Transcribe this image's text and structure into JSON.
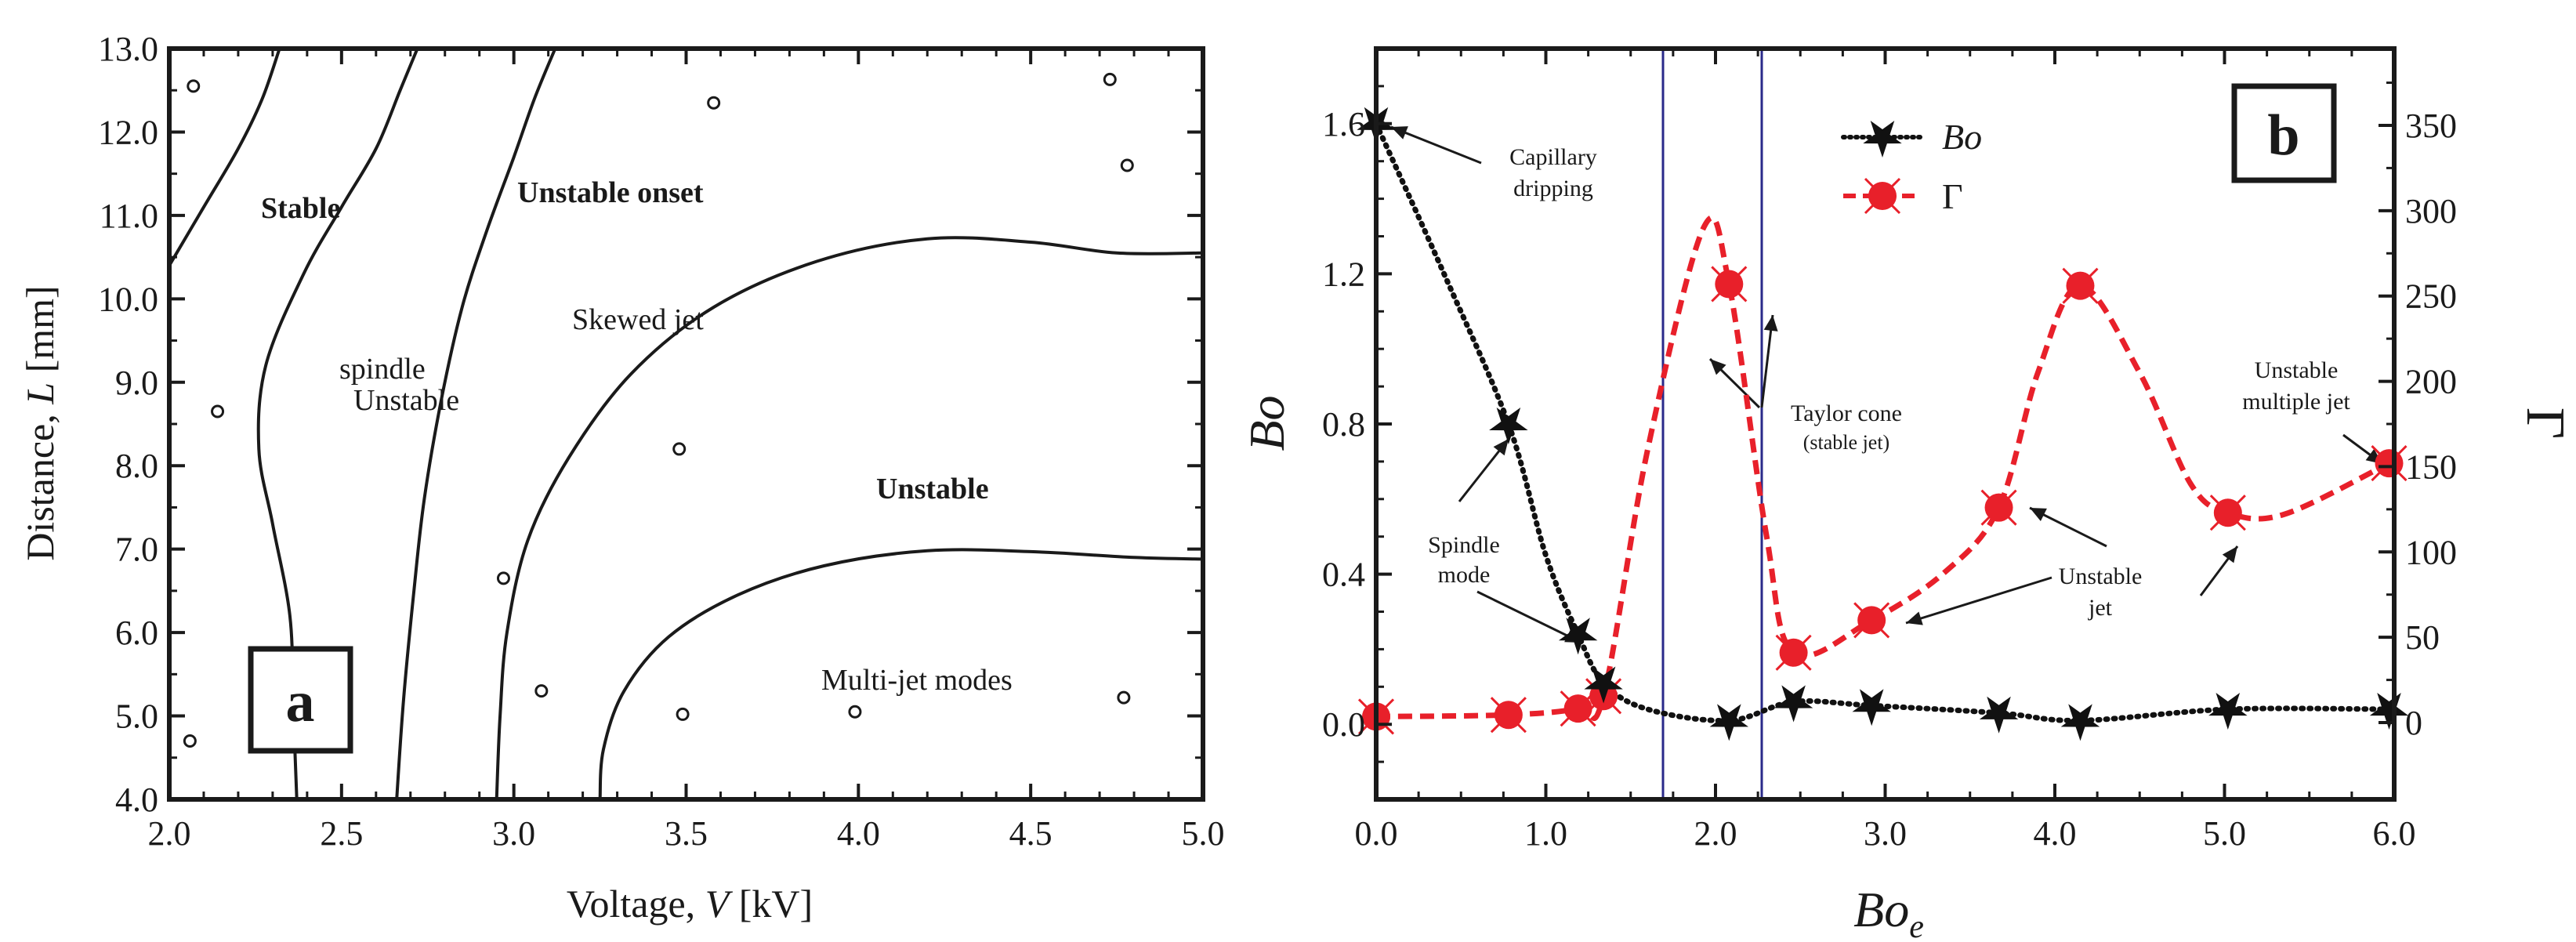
{
  "chart_data": [
    {
      "type": "scatter",
      "panel_label": "a",
      "xlabel": "Voltage, ",
      "xlabel_var": "V",
      "xlabel_unit": " [kV]",
      "ylabel": "Distance, ",
      "ylabel_var": "L",
      "ylabel_unit": " [mm]",
      "xlim": [
        2.0,
        5.0
      ],
      "ylim": [
        4.0,
        13.0
      ],
      "xticks": [
        "2.0",
        "2.5",
        "3.0",
        "3.5",
        "4.0",
        "4.5",
        "5.0"
      ],
      "yticks": [
        "4.0",
        "5.0",
        "6.0",
        "7.0",
        "8.0",
        "9.0",
        "10.0",
        "11.0",
        "12.0",
        "13.0"
      ],
      "points": [
        {
          "x": 2.07,
          "y": 12.55
        },
        {
          "x": 4.73,
          "y": 12.63
        },
        {
          "x": 3.58,
          "y": 12.35
        },
        {
          "x": 4.78,
          "y": 11.6
        },
        {
          "x": 2.14,
          "y": 8.65
        },
        {
          "x": 3.48,
          "y": 8.2
        },
        {
          "x": 2.97,
          "y": 6.65
        },
        {
          "x": 3.08,
          "y": 5.3
        },
        {
          "x": 3.49,
          "y": 5.02
        },
        {
          "x": 3.99,
          "y": 5.05
        },
        {
          "x": 4.77,
          "y": 5.22
        },
        {
          "x": 2.06,
          "y": 4.7
        }
      ],
      "boundaries": [
        {
          "name": "stable-boundary",
          "points": [
            [
              2.0,
              10.4
            ],
            [
              2.1,
              11.1
            ],
            [
              2.2,
              11.8
            ],
            [
              2.27,
              12.4
            ],
            [
              2.32,
              13.0
            ]
          ]
        },
        {
          "name": "spindle-boundary",
          "points": [
            [
              2.37,
              4.0
            ],
            [
              2.36,
              5.1
            ],
            [
              2.35,
              6.2
            ],
            [
              2.3,
              7.3
            ],
            [
              2.26,
              8.2
            ],
            [
              2.28,
              9.2
            ],
            [
              2.39,
              10.3
            ],
            [
              2.5,
              11.1
            ],
            [
              2.6,
              11.8
            ],
            [
              2.67,
              12.5
            ],
            [
              2.72,
              13.0
            ]
          ]
        },
        {
          "name": "onset-boundary",
          "points": [
            [
              2.66,
              4.0
            ],
            [
              2.68,
              5.2
            ],
            [
              2.71,
              6.5
            ],
            [
              2.74,
              7.6
            ],
            [
              2.79,
              8.8
            ],
            [
              2.85,
              9.9
            ],
            [
              2.92,
              10.8
            ],
            [
              3.0,
              11.7
            ],
            [
              3.06,
              12.4
            ],
            [
              3.12,
              13.0
            ]
          ]
        },
        {
          "name": "skewed-boundary",
          "points": [
            [
              2.95,
              4.0
            ],
            [
              2.96,
              5.0
            ],
            [
              2.98,
              6.0
            ],
            [
              3.04,
              7.1
            ],
            [
              3.16,
              8.1
            ],
            [
              3.34,
              9.1
            ],
            [
              3.58,
              9.9
            ],
            [
              3.88,
              10.45
            ],
            [
              4.2,
              10.72
            ],
            [
              4.5,
              10.68
            ],
            [
              4.75,
              10.55
            ],
            [
              5.0,
              10.55
            ]
          ]
        },
        {
          "name": "unstable-boundary",
          "points": [
            [
              3.25,
              4.0
            ],
            [
              3.26,
              4.6
            ],
            [
              3.32,
              5.3
            ],
            [
              3.45,
              5.95
            ],
            [
              3.65,
              6.45
            ],
            [
              3.9,
              6.8
            ],
            [
              4.2,
              6.98
            ],
            [
              4.5,
              6.97
            ],
            [
              4.8,
              6.9
            ],
            [
              5.0,
              6.88
            ]
          ]
        }
      ],
      "region_labels": [
        "Stable",
        "Unstable onset",
        "Skewed jet",
        "Unstable",
        "spindle",
        "Unstable",
        "Multi-jet modes"
      ]
    },
    {
      "type": "line",
      "panel_label": "b",
      "xlabel": "Bo",
      "xlabel_sub": "e",
      "ylabel_left": "Bo",
      "ylabel_right": "Γ",
      "xlim": [
        0.0,
        6.0
      ],
      "ylim_left": [
        -0.2,
        1.8
      ],
      "ylim_right": [
        -45,
        395
      ],
      "xticks": [
        "0.0",
        "1.0",
        "2.0",
        "3.0",
        "4.0",
        "5.0",
        "6.0"
      ],
      "yticks_left": [
        "0.0",
        "0.4",
        "0.8",
        "1.2",
        "1.6"
      ],
      "yticks_right": [
        "0",
        "50",
        "100",
        "150",
        "200",
        "250",
        "300",
        "350"
      ],
      "vertical_lines": [
        1.62,
        2.22
      ],
      "series": [
        {
          "name": "Bo",
          "axis": "left",
          "color": "#111111",
          "marker": "star",
          "x": [
            0.0,
            0.78,
            1.19,
            1.34,
            2.08,
            2.46,
            2.92,
            3.67,
            4.15,
            5.02,
            5.97
          ],
          "y": [
            1.6,
            0.8,
            0.24,
            0.11,
            0.01,
            0.06,
            0.05,
            0.03,
            0.01,
            0.04,
            0.04
          ]
        },
        {
          "name": "Γ",
          "axis": "right",
          "color": "#e8202a",
          "marker": "circle",
          "x": [
            0.0,
            0.78,
            1.19,
            1.34,
            2.08,
            2.46,
            2.92,
            3.67,
            4.15,
            5.02,
            5.97
          ],
          "y": [
            3.5,
            4.5,
            8.2,
            15.5,
            257.0,
            41.0,
            60.0,
            126.0,
            256.0,
            123.0,
            152.0
          ]
        }
      ],
      "legend": [
        {
          "label": "Bo"
        },
        {
          "label": "Γ"
        }
      ],
      "annotations": {
        "capillary": [
          "Capillary",
          "dripping"
        ],
        "spindle": [
          "Spindle",
          "mode"
        ],
        "taylor": [
          "Taylor cone",
          "(stable jet)"
        ],
        "unstable_jet": [
          "Unstable",
          "jet"
        ],
        "unstable_multi": [
          "Unstable",
          "multiple jet"
        ]
      }
    }
  ],
  "colors": {
    "bo_series": "#111111",
    "gamma_series": "#e8202a",
    "vlines": "#2a2a8a",
    "axis": "#1a1a1a"
  }
}
